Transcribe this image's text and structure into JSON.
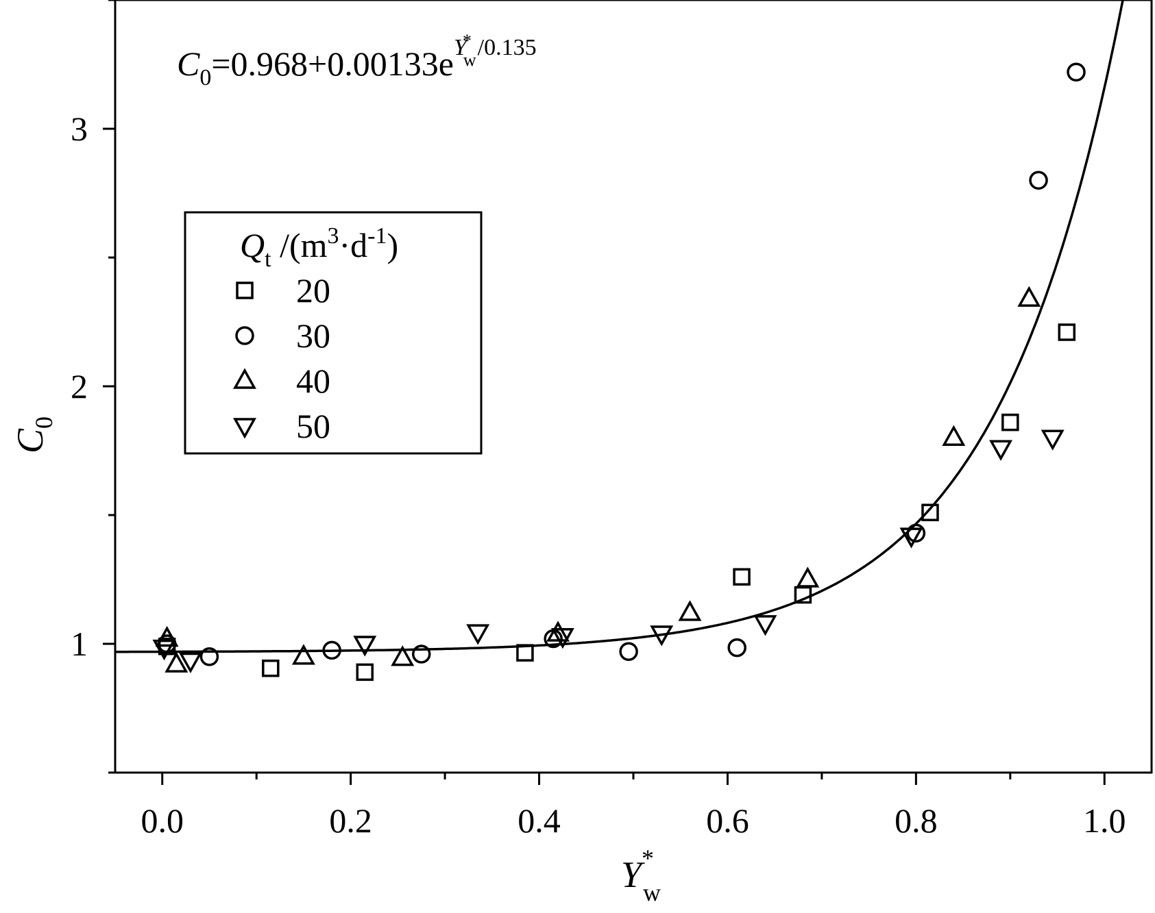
{
  "chart_data": {
    "type": "scatter",
    "xlabel": {
      "main": "Y",
      "superscript": "*",
      "subscript": "w"
    },
    "ylabel": {
      "main": "C",
      "subscript": "0"
    },
    "xlim": [
      -0.05,
      1.05
    ],
    "ylim": [
      0.5,
      3.5
    ],
    "xticks": [
      0.0,
      0.2,
      0.4,
      0.6,
      0.8,
      1.0
    ],
    "xtick_labels": [
      "0.0",
      "0.2",
      "0.4",
      "0.6",
      "0.8",
      "1.0"
    ],
    "yticks": [
      1,
      2,
      3
    ],
    "ytick_labels": [
      "1",
      "2",
      "3"
    ],
    "grid": false,
    "legend": {
      "placement": "upper-left",
      "title": {
        "main": "Q",
        "sub": "t",
        "unit_open": " /(m",
        "sup3": "3",
        "dot_d": "·d",
        "supm1": "-1",
        "unit_close": ")"
      }
    },
    "equation": {
      "lhs_main": "C",
      "lhs_sub": "0",
      "rhs": "=0.968+0.00133e",
      "exp_main": "Y",
      "exp_sup": "*",
      "exp_sub": "w",
      "exp_tail": "/0.135"
    },
    "fit": {
      "a": 0.968,
      "b": 0.00133,
      "c": 0.135
    },
    "series": [
      {
        "name": "20",
        "marker": "square",
        "points": [
          [
            0.005,
            0.99
          ],
          [
            0.115,
            0.905
          ],
          [
            0.215,
            0.89
          ],
          [
            0.385,
            0.965
          ],
          [
            0.615,
            1.26
          ],
          [
            0.68,
            1.19
          ],
          [
            0.815,
            1.51
          ],
          [
            0.9,
            1.86
          ],
          [
            0.96,
            2.21
          ]
        ]
      },
      {
        "name": "30",
        "marker": "circle",
        "points": [
          [
            0.005,
            1.0
          ],
          [
            0.05,
            0.95
          ],
          [
            0.18,
            0.975
          ],
          [
            0.275,
            0.96
          ],
          [
            0.415,
            1.02
          ],
          [
            0.495,
            0.97
          ],
          [
            0.61,
            0.985
          ],
          [
            0.8,
            1.43
          ],
          [
            0.93,
            2.8
          ],
          [
            0.97,
            3.22
          ]
        ]
      },
      {
        "name": "40",
        "marker": "triangle-up",
        "points": [
          [
            0.005,
            1.02
          ],
          [
            0.015,
            0.92
          ],
          [
            0.15,
            0.95
          ],
          [
            0.255,
            0.945
          ],
          [
            0.42,
            1.04
          ],
          [
            0.56,
            1.12
          ],
          [
            0.685,
            1.25
          ],
          [
            0.84,
            1.8
          ],
          [
            0.92,
            2.34
          ]
        ]
      },
      {
        "name": "50",
        "marker": "triangle-down",
        "points": [
          [
            0.002,
            0.985
          ],
          [
            0.03,
            0.935
          ],
          [
            0.215,
            1.0
          ],
          [
            0.335,
            1.045
          ],
          [
            0.425,
            1.03
          ],
          [
            0.53,
            1.04
          ],
          [
            0.64,
            1.08
          ],
          [
            0.795,
            1.42
          ],
          [
            0.89,
            1.76
          ],
          [
            0.945,
            1.8
          ]
        ]
      }
    ]
  }
}
